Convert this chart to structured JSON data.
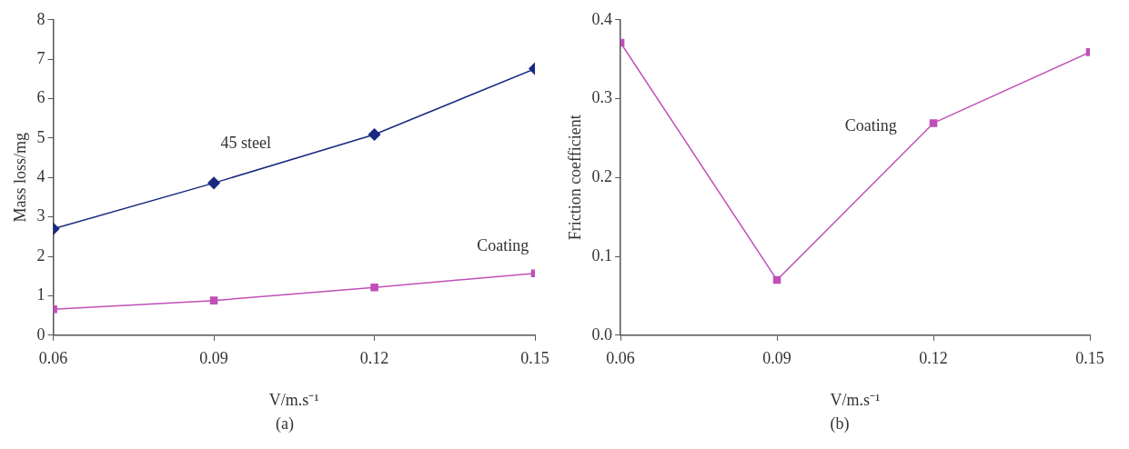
{
  "chart_data": [
    {
      "type": "line",
      "xlabel": "V/m.s⁻¹",
      "ylabel": "Mass loss/mg",
      "x": [
        0.06,
        0.09,
        0.12,
        0.15
      ],
      "xlim": [
        0.06,
        0.15
      ],
      "xticks": [
        0.06,
        0.09,
        0.12,
        0.15
      ],
      "ylim": [
        0,
        8
      ],
      "yticks": [
        0,
        1,
        2,
        3,
        4,
        5,
        6,
        7,
        8
      ],
      "annotations": [
        "(a)"
      ],
      "series": [
        {
          "name": "45 steel",
          "color": "#1a2a80",
          "marker": "diamond",
          "values": [
            2.7,
            3.86,
            5.09,
            6.76
          ]
        },
        {
          "name": "Coating",
          "color": "#c050b8",
          "marker": "square",
          "values": [
            0.66,
            0.88,
            1.21,
            1.57
          ]
        }
      ]
    },
    {
      "type": "line",
      "xlabel": "V/m.s⁻¹",
      "ylabel": "Friction coefficient",
      "x": [
        0.06,
        0.09,
        0.12,
        0.15
      ],
      "xlim": [
        0.06,
        0.15
      ],
      "xticks": [
        0.06,
        0.09,
        0.12,
        0.15
      ],
      "ylim": [
        0,
        0.4
      ],
      "yticks": [
        {
          "value": 0,
          "label": "0.0"
        },
        0.1,
        0.2,
        0.3,
        0.4
      ],
      "annotations": [
        "(b)"
      ],
      "series": [
        {
          "name": "Coating",
          "color": "#c050b8",
          "marker": "square",
          "values": [
            0.371,
            0.07,
            0.269,
            0.359
          ]
        }
      ]
    }
  ]
}
